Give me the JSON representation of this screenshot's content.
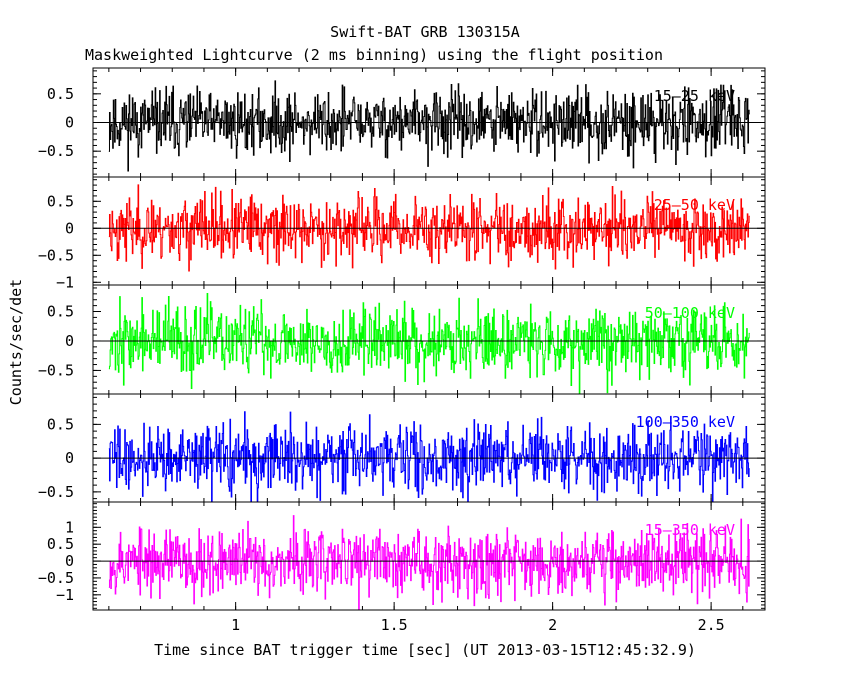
{
  "chart_data": {
    "type": "line",
    "title": "Swift-BAT GRB 130315A",
    "subtitle": "Maskweighted Lightcurve (2 ms binning) using the flight position",
    "xlabel": "Time since BAT trigger time [sec] (UT 2013-03-15T12:45:32.9)",
    "ylabel": "Counts/sec/det",
    "xlim": [
      0.55,
      2.67
    ],
    "xticks": [
      1,
      1.5,
      2,
      2.5
    ],
    "xtick_labels": [
      "1",
      "1.5",
      "2",
      "2.5"
    ],
    "x_start": 0.6,
    "x_end": 2.62,
    "bin_width": 0.002,
    "panels": [
      {
        "name": "15-25 keV",
        "label": "15–25 keV",
        "color": "#000000",
        "ylim": [
          -0.95,
          0.95
        ],
        "yticks": [
          0.5,
          0,
          -0.5
        ],
        "ytick_labels": [
          "0.5",
          "0",
          "−0.5"
        ],
        "amplitude": 0.28,
        "seed": 11
      },
      {
        "name": "25-50 keV",
        "label": "25–50 keV",
        "color": "#ff0000",
        "ylim": [
          -1.05,
          0.95
        ],
        "yticks": [
          0.5,
          0,
          -0.5,
          -1
        ],
        "ytick_labels": [
          "0.5",
          "0",
          "−0.5",
          "−1"
        ],
        "amplitude": 0.3,
        "seed": 23
      },
      {
        "name": "50-100 keV",
        "label": "50–100 keV",
        "color": "#00ff00",
        "ylim": [
          -0.9,
          0.95
        ],
        "yticks": [
          0.5,
          0,
          -0.5
        ],
        "ytick_labels": [
          "0.5",
          "0",
          "−0.5"
        ],
        "amplitude": 0.3,
        "seed": 37
      },
      {
        "name": "100-350 keV",
        "label": "100–350 keV",
        "color": "#0000ff",
        "ylim": [
          -0.65,
          0.95
        ],
        "yticks": [
          0.5,
          0,
          -0.5
        ],
        "ytick_labels": [
          "0.5",
          "0",
          "−0.5"
        ],
        "amplitude": 0.25,
        "seed": 41
      },
      {
        "name": "15-350 keV",
        "label": "15–350 keV",
        "color": "#ff00ff",
        "ylim": [
          -1.45,
          1.75
        ],
        "yticks": [
          1,
          0.5,
          0,
          -0.5,
          -1
        ],
        "ytick_labels": [
          "1",
          "0.5",
          "0",
          "−0.5",
          "−1"
        ],
        "amplitude": 0.5,
        "seed": 53
      }
    ]
  }
}
